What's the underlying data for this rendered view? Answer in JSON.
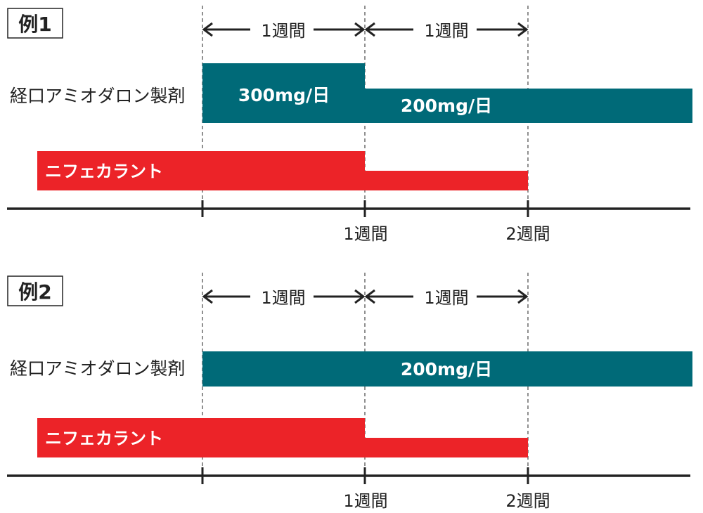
{
  "colors": {
    "amiodarone": "#006a78",
    "nifekalant": "#ec2328",
    "axis": "#222222",
    "text_dark": "#222222",
    "text_light": "#ffffff"
  },
  "examples": [
    {
      "title": "例1",
      "interval_labels": [
        "1週間",
        "1週間"
      ],
      "amiodarone": {
        "label": "経口アミオダロン製剤",
        "segments": [
          {
            "dose": "300mg/日",
            "start_week": 0,
            "end_week": 1
          },
          {
            "dose": "200mg/日",
            "start_week": 1,
            "end_week": null
          }
        ]
      },
      "nifekalant": {
        "label": "ニフェカラント",
        "segments": [
          {
            "start_week": -1,
            "end_week": 1,
            "level": "high"
          },
          {
            "start_week": 1,
            "end_week": 2,
            "level": "low"
          }
        ]
      },
      "axis_ticks": [
        "1週間",
        "2週間"
      ]
    },
    {
      "title": "例2",
      "interval_labels": [
        "1週間",
        "1週間"
      ],
      "amiodarone": {
        "label": "経口アミオダロン製剤",
        "segments": [
          {
            "dose": "200mg/日",
            "start_week": 0,
            "end_week": null
          }
        ]
      },
      "nifekalant": {
        "label": "ニフェカラント",
        "segments": [
          {
            "start_week": -1,
            "end_week": 1,
            "level": "high"
          },
          {
            "start_week": 1,
            "end_week": 2,
            "level": "low"
          }
        ]
      },
      "axis_ticks": [
        "1週間",
        "2週間"
      ]
    }
  ]
}
